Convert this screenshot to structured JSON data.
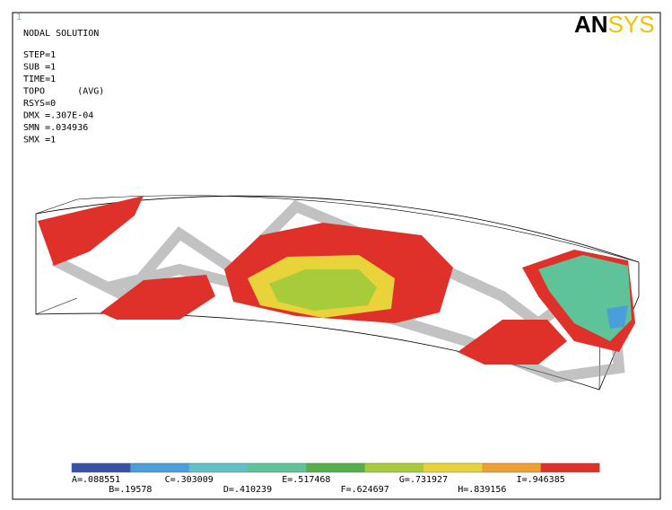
{
  "window_number": "1",
  "logo": {
    "first": "AN",
    "second": "SYS"
  },
  "info": [
    "NODAL SOLUTION",
    "STEP=1",
    "SUB =1",
    "TIME=1",
    "TOPO      (AVG)",
    "RSYS=0",
    "DMX =.307E-04",
    "SMN =.034936",
    "SMX =1"
  ],
  "legend": {
    "colors": [
      "#3a52a6",
      "#4a9fda",
      "#62c0c8",
      "#5fc39a",
      "#55b04a",
      "#a8cb3a",
      "#e8d43a",
      "#f0a030",
      "#e0302a"
    ],
    "labels": [
      "A=.088551",
      "B=.19578",
      "C=.303009",
      "D=.410239",
      "E=.517468",
      "F=.624697",
      "G=.731927",
      "H=.839156",
      "I=.946385"
    ]
  }
}
